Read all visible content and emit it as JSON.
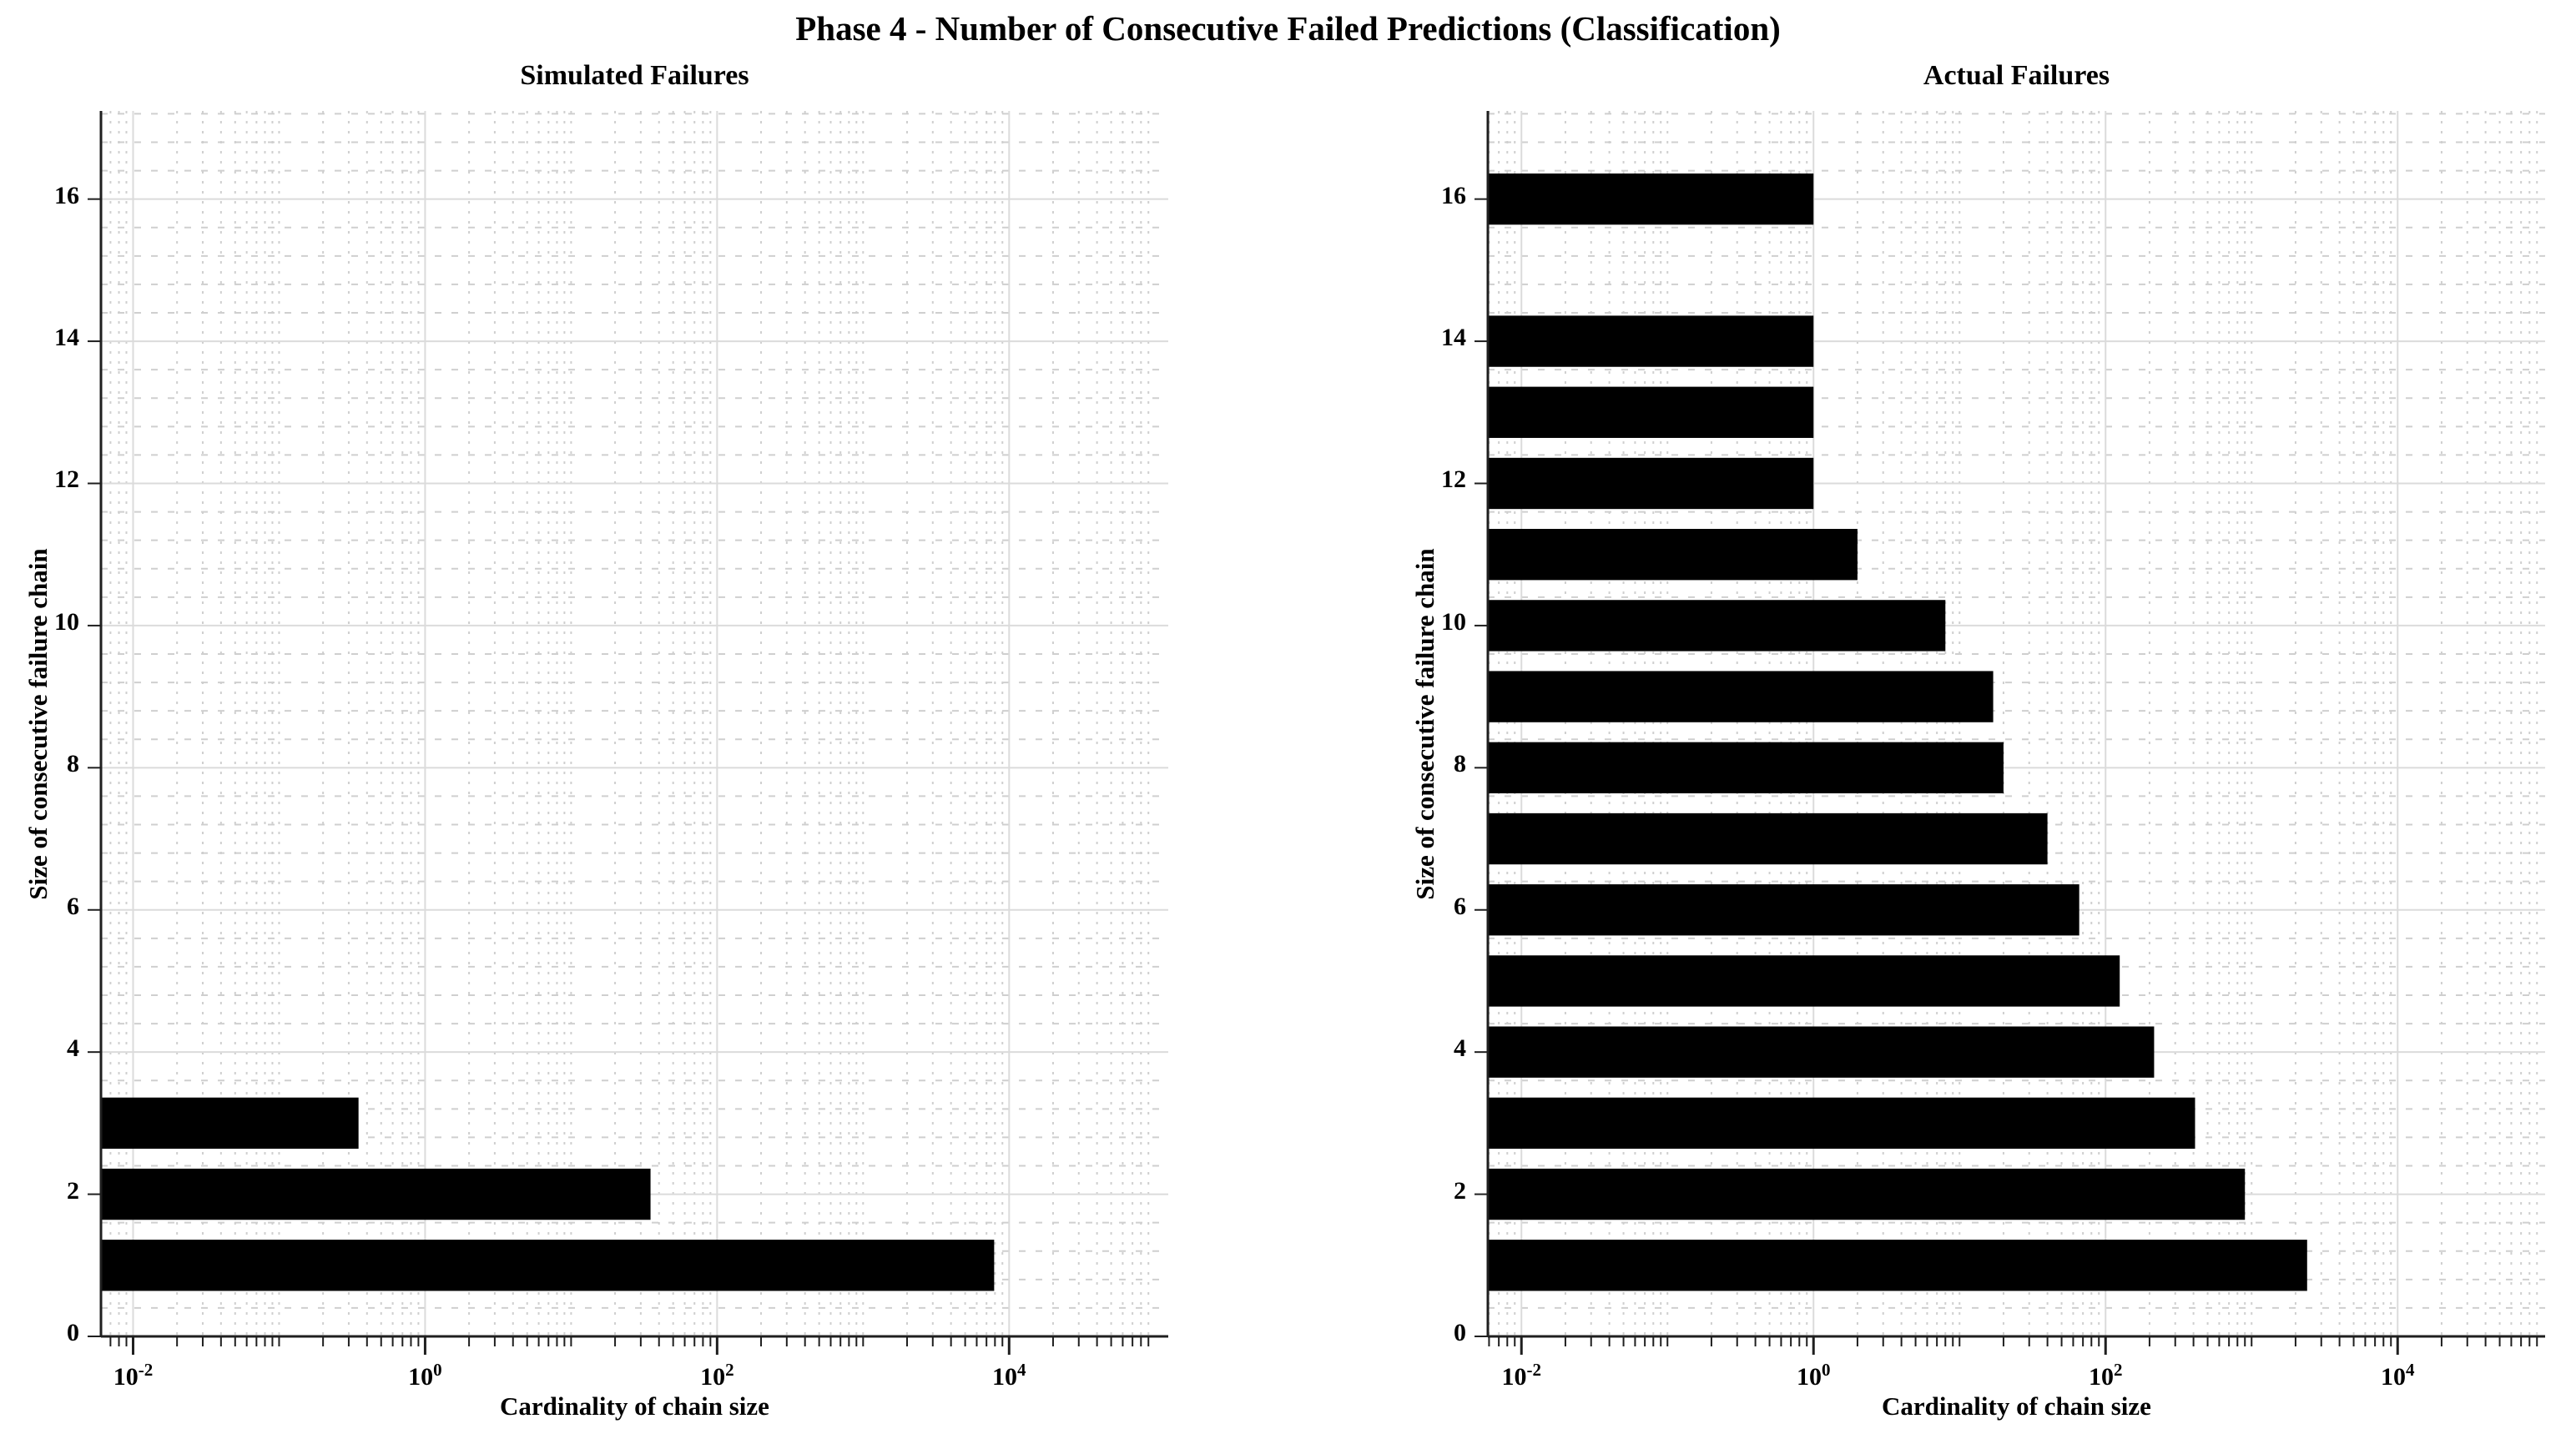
{
  "figure": {
    "title": "Phase 4 - Number of Consecutive Failed Predictions (Classification)",
    "background_color": "#ffffff",
    "bar_color": "#000000",
    "axis_color": "#1f1f1f",
    "grid_major_color": "#dbdbdb",
    "grid_minor_color": "#cfcfcf",
    "text_color": "#000000"
  },
  "chart_data": [
    {
      "type": "bar",
      "orientation": "horizontal",
      "title": "Simulated Failures",
      "xlabel": "Cardinality of chain size",
      "ylabel": "Size of consecutive failure chain",
      "xscale": "log",
      "grid": true,
      "minor_grid": true,
      "legend": null,
      "xlim_log": [
        -2.22,
        5.09
      ],
      "ylim": [
        0,
        17.24
      ],
      "xticks": [
        {
          "base": "10",
          "exp": "-2",
          "value": 0.01
        },
        {
          "base": "10",
          "exp": "0",
          "value": 1
        },
        {
          "base": "10",
          "exp": "2",
          "value": 100
        },
        {
          "base": "10",
          "exp": "4",
          "value": 10000
        }
      ],
      "yticks": [
        0,
        2,
        4,
        6,
        8,
        10,
        12,
        14,
        16
      ],
      "categories": [
        1,
        2,
        3
      ],
      "values": [
        7900,
        35,
        0.35
      ]
    },
    {
      "type": "bar",
      "orientation": "horizontal",
      "title": "Actual Failures",
      "xlabel": "Cardinality of chain size",
      "ylabel": "Size of consecutive failure chain",
      "xscale": "log",
      "grid": true,
      "minor_grid": true,
      "legend": null,
      "xlim_log": [
        -2.23,
        5.01
      ],
      "ylim": [
        0,
        17.24
      ],
      "xticks": [
        {
          "base": "10",
          "exp": "-2",
          "value": 0.01
        },
        {
          "base": "10",
          "exp": "0",
          "value": 1
        },
        {
          "base": "10",
          "exp": "2",
          "value": 100
        },
        {
          "base": "10",
          "exp": "4",
          "value": 10000
        }
      ],
      "yticks": [
        0,
        2,
        4,
        6,
        8,
        10,
        12,
        14,
        16
      ],
      "categories": [
        1,
        2,
        3,
        4,
        5,
        6,
        7,
        8,
        9,
        10,
        11,
        12,
        13,
        14,
        15,
        16
      ],
      "values": [
        2400,
        900,
        410,
        215,
        125,
        66,
        40,
        20,
        17,
        8,
        2,
        1,
        1,
        1,
        0,
        1
      ]
    }
  ]
}
